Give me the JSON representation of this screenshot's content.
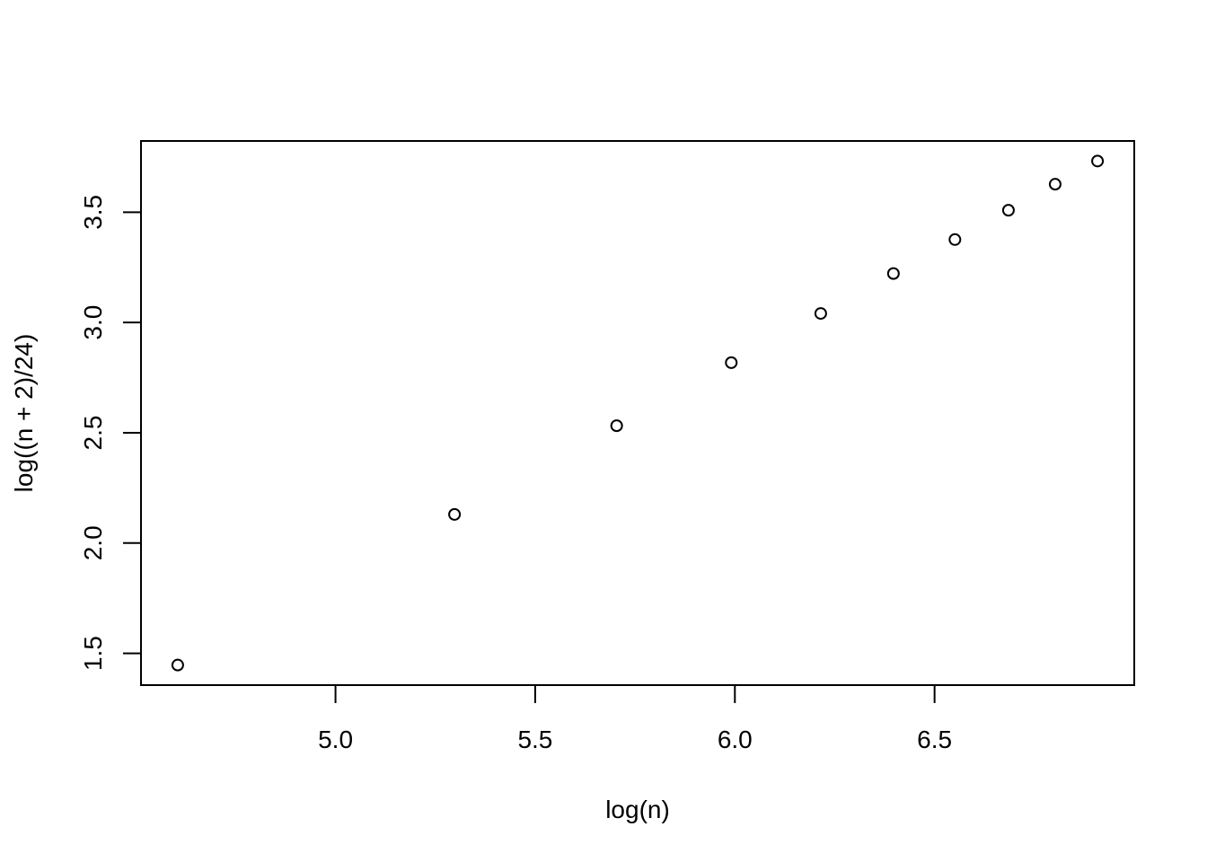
{
  "chart_data": {
    "type": "scatter",
    "title": "",
    "xlabel": "log(n)",
    "ylabel": "log((n + 2)/24)",
    "xlim": [
      4.513,
      7.0
    ],
    "ylim": [
      1.356,
      3.823
    ],
    "x_ticks": [
      5.0,
      5.5,
      6.0,
      6.5
    ],
    "x_tick_labels": [
      "5.0",
      "5.5",
      "6.0",
      "6.5"
    ],
    "y_ticks": [
      1.5,
      2.0,
      2.5,
      3.0,
      3.5
    ],
    "y_tick_labels": [
      "1.5",
      "2.0",
      "2.5",
      "3.0",
      "3.5"
    ],
    "grid": false,
    "marker": "open-circle",
    "color": "#000000",
    "x": [
      4.605,
      5.298,
      5.704,
      5.991,
      6.215,
      6.397,
      6.551,
      6.685,
      6.802,
      6.908
    ],
    "y": [
      1.447,
      2.13,
      2.532,
      2.818,
      3.041,
      3.222,
      3.376,
      3.509,
      3.627,
      3.732
    ]
  }
}
